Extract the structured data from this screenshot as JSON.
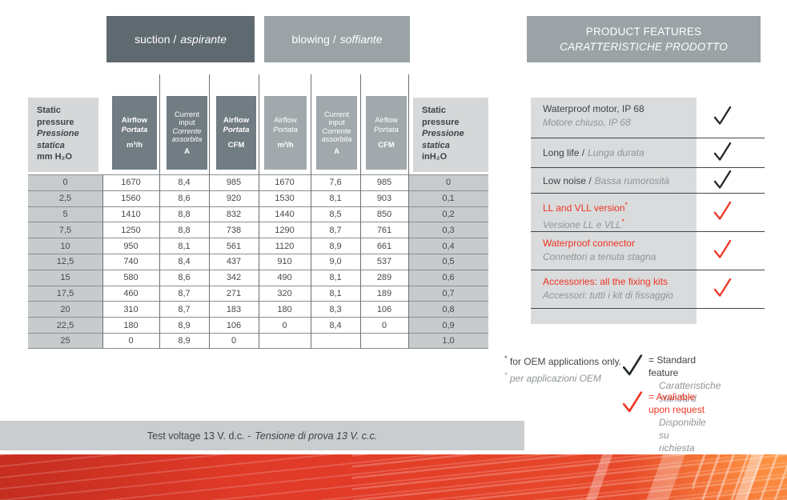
{
  "colors": {
    "accent_red": "#ee3524",
    "dark_slate": "#5f6a70",
    "medium_gray": "#9ba3a7",
    "dark_header": "#717c83",
    "light_block": "#d5d7d8",
    "row_header_cell": "#c8cbcc",
    "check_black": "#23282b"
  },
  "banners": {
    "suction": {
      "en": "suction /",
      "it": "aspirante"
    },
    "blowing": {
      "en": "blowing /",
      "it": "soffiante"
    },
    "features": {
      "en": "PRODUCT FEATURES",
      "it": "CARATTERISTICHE PRODOTTO"
    }
  },
  "table": {
    "col_headers": [
      {
        "style": "side",
        "en": [
          "Static",
          "pressure"
        ],
        "it": [
          "Pressione",
          "statica"
        ],
        "unit": "mm H₂O"
      },
      {
        "style": "dark",
        "bold": true,
        "en": [
          "Airflow"
        ],
        "it": [
          "Portata"
        ],
        "unit": "m³/h"
      },
      {
        "style": "dark",
        "bold": false,
        "en": [
          "Current",
          "input"
        ],
        "it": [
          "Corrente",
          "assorbita"
        ],
        "unit": "A"
      },
      {
        "style": "dark",
        "bold": true,
        "en": [
          "Airflow"
        ],
        "it": [
          "Portata"
        ],
        "unit": "CFM"
      },
      {
        "style": "medium",
        "bold": false,
        "en": [
          "Airflow"
        ],
        "it": [
          "Portata"
        ],
        "unit": "m³/h"
      },
      {
        "style": "medium",
        "bold": false,
        "en": [
          "Current",
          "input"
        ],
        "it": [
          "Corrente",
          "assorbita"
        ],
        "unit": "A"
      },
      {
        "style": "medium",
        "bold": false,
        "en": [
          "Airflow"
        ],
        "it": [
          "Portata"
        ],
        "unit": "CFM"
      },
      {
        "style": "side",
        "en": [
          "Static",
          "pressure"
        ],
        "it": [
          "Pressione",
          "statica"
        ],
        "unit": "inH₂O"
      }
    ],
    "rows": [
      [
        "0",
        "1670",
        "8,4",
        "985",
        "1670",
        "7,6",
        "985",
        "0"
      ],
      [
        "2,5",
        "1560",
        "8,6",
        "920",
        "1530",
        "8,1",
        "903",
        "0,1"
      ],
      [
        "5",
        "1410",
        "8,8",
        "832",
        "1440",
        "8,5",
        "850",
        "0,2"
      ],
      [
        "7,5",
        "1250",
        "8,8",
        "738",
        "1290",
        "8,7",
        "761",
        "0,3"
      ],
      [
        "10",
        "950",
        "8,1",
        "561",
        "1120",
        "8,9",
        "661",
        "0,4"
      ],
      [
        "12,5",
        "740",
        "8,4",
        "437",
        "910",
        "9,0",
        "537",
        "0,5"
      ],
      [
        "15",
        "580",
        "8,6",
        "342",
        "490",
        "8,1",
        "289",
        "0,6"
      ],
      [
        "17,5",
        "460",
        "8,7",
        "271",
        "320",
        "8,1",
        "189",
        "0,7"
      ],
      [
        "20",
        "310",
        "8,7",
        "183",
        "180",
        "8,3",
        "106",
        "0,8"
      ],
      [
        "22,5",
        "180",
        "8,9",
        "106",
        "0",
        "8,4",
        "0",
        "0,9"
      ],
      [
        "25",
        "0",
        "8,9",
        "0",
        "",
        "",
        "",
        "1,0"
      ]
    ]
  },
  "features": {
    "items": [
      {
        "en": "Waterproof motor, IP 68",
        "it": "Motore chiuso, IP 68",
        "color": "black",
        "check": "black",
        "two_line": true
      },
      {
        "en": "Long life /",
        "it": "Lunga durata",
        "color": "black",
        "check": "black",
        "two_line": false
      },
      {
        "en": "Low noise /",
        "it": "Bassa rumorosità",
        "color": "black",
        "check": "black",
        "two_line": false
      },
      {
        "en": "LL and VLL version",
        "en_sup": "*",
        "it": "Versione LL e VLL",
        "it_sup": "*",
        "color": "red",
        "check": "red",
        "two_line": true
      },
      {
        "en": "Waterproof connector",
        "it": "Connettori a tenuta stagna",
        "color": "red",
        "check": "red",
        "two_line": true
      },
      {
        "en": "Accessories: all the fixing kits",
        "it": "Accessori: tutti i kit di fissaggio",
        "color": "red",
        "check": "red",
        "two_line": true
      }
    ]
  },
  "footnotes": {
    "asterisk": "*",
    "oem": {
      "en": "for OEM applications only.",
      "it": "per applicazioni OEM"
    },
    "legend": [
      {
        "check": "black",
        "en": "= Standard feature",
        "it": "Caratteristiche standard"
      },
      {
        "check": "red",
        "en": "= Avaliable upon request",
        "it": "Disponibile su richiesta"
      }
    ]
  },
  "footer": {
    "en": "Test voltage 13 V. d.c. -",
    "it": "Tensione di prova 13 V. c.c."
  }
}
